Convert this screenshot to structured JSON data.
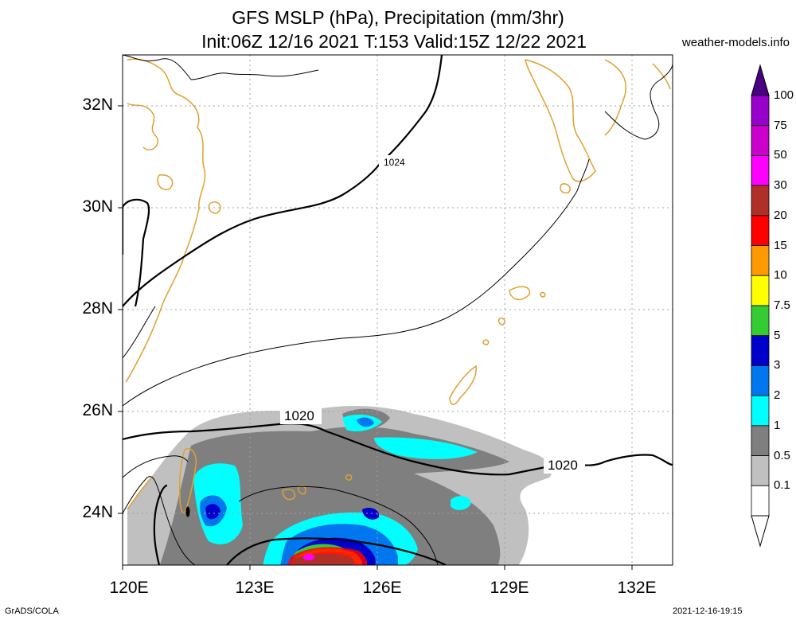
{
  "title": {
    "line1": "GFS MSLP (hPa), Precipitation (mm/3hr)",
    "line2": "Init:06Z 12/16 2021 T:153 Valid:15Z 12/22 2021"
  },
  "site": "weather-models.info",
  "footer": {
    "left": "GrADS/COLA",
    "right": "2021-12-16-19:15"
  },
  "lat_labels": [
    "32N",
    "30N",
    "28N",
    "26N",
    "24N"
  ],
  "lon_labels": [
    "120E",
    "123E",
    "126E",
    "129E",
    "132E"
  ],
  "isobar_labels": [
    "1024",
    "1020",
    "1020"
  ],
  "colorbar": {
    "labels": [
      "100",
      "75",
      "50",
      "30",
      "20",
      "15",
      "10",
      "7.5",
      "5",
      "3",
      "2",
      "1",
      "0.5",
      "0.1"
    ],
    "colors": [
      "#9900cc",
      "#cc00cc",
      "#ff00ff",
      "#b03028",
      "#ff0000",
      "#ff9900",
      "#ffff00",
      "#33cc33",
      "#0000cc",
      "#0077ee",
      "#00ffff",
      "#7f7f7f",
      "#c0c0c0",
      "#ffffff"
    ],
    "top_arrow_color": "#4b0082"
  },
  "colors": {
    "coast": "#e0a030",
    "isobar": "#000000",
    "grid": "#a0a0a0"
  }
}
